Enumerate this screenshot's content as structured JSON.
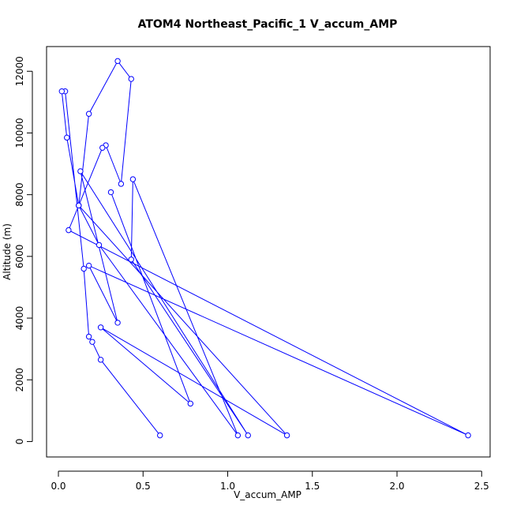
{
  "chart_data": {
    "type": "line",
    "title": "ATOM4 Northeast_Pacific_1 V_accum_AMP",
    "xlabel": "V_accum_AMP",
    "ylabel": "Altitude (m)",
    "xlim": [
      -0.07,
      2.55
    ],
    "ylim": [
      -500,
      12800
    ],
    "x_ticks": [
      "0.0",
      "0.5",
      "1.0",
      "1.5",
      "2.0",
      "2.5"
    ],
    "x_tick_values": [
      0,
      0.5,
      1.0,
      1.5,
      2.0,
      2.5
    ],
    "y_ticks": [
      "0",
      "2000",
      "4000",
      "6000",
      "8000",
      "10000",
      "12000"
    ],
    "y_tick_values": [
      0,
      2000,
      4000,
      6000,
      8000,
      10000,
      12000
    ],
    "series_color": "#0000ff",
    "marker": "open-circle",
    "grid": false,
    "x": [
      0.6,
      0.25,
      0.2,
      0.18,
      0.15,
      0.04,
      0.02,
      0.05,
      0.12,
      0.18,
      0.35,
      0.43,
      0.37,
      0.28,
      0.26,
      0.06,
      2.42,
      0.18,
      0.35,
      0.13,
      1.12,
      0.43,
      0.44,
      1.06,
      0.24,
      0.12,
      1.35,
      0.25,
      0.78,
      0.31
    ],
    "y": [
      200,
      2650,
      3230,
      3400,
      5600,
      11350,
      11350,
      9850,
      7650,
      10620,
      12330,
      11750,
      8350,
      9600,
      9520,
      6850,
      200,
      5700,
      3850,
      8760,
      200,
      5900,
      8500,
      200,
      6370,
      7650,
      200,
      3700,
      1230,
      8080
    ]
  }
}
